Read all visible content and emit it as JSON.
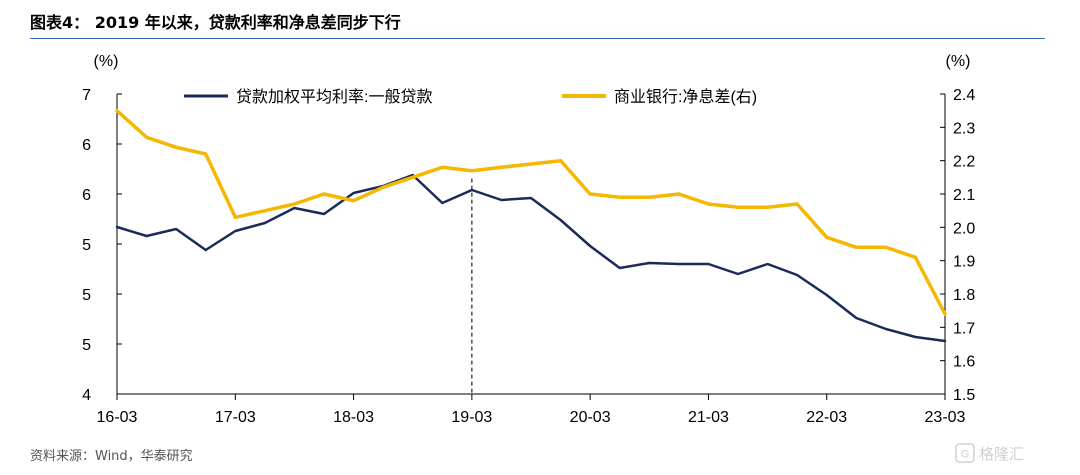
{
  "header": {
    "title": "图表4：  2019 年以来，贷款利率和净息差同步下行"
  },
  "footer": {
    "source": "资料来源：Wind，华泰研究",
    "watermark_text": "格隆汇"
  },
  "colors": {
    "loan_rate": "#1a2a5a",
    "net_interest_margin": "#f5b700",
    "axis": "#000000",
    "marker_line": "#333333"
  },
  "chart_data": {
    "type": "line",
    "left_axis": {
      "unit": "(%)",
      "range": [
        4,
        7
      ],
      "tick_values": [
        4,
        4.5,
        5,
        5.5,
        6,
        6.5,
        7
      ],
      "tick_labels": [
        "4",
        "5",
        "5",
        "5",
        "6",
        "6",
        "7"
      ]
    },
    "right_axis": {
      "unit": "(%)",
      "range": [
        1.5,
        2.4
      ],
      "tick_values": [
        1.5,
        1.6,
        1.7,
        1.8,
        1.9,
        2.0,
        2.1,
        2.2,
        2.3,
        2.4
      ],
      "tick_labels": [
        "1.5",
        "1.6",
        "1.7",
        "1.8",
        "1.9",
        "2.0",
        "2.1",
        "2.2",
        "2.3",
        "2.4"
      ]
    },
    "x_axis": {
      "range": [
        "2016-03",
        "2023-03"
      ],
      "tick_labels": [
        "16-03",
        "17-03",
        "18-03",
        "19-03",
        "20-03",
        "21-03",
        "22-03",
        "23-03"
      ]
    },
    "reference_line": {
      "x": "2019-03"
    },
    "legend": {
      "placement": "top"
    },
    "grid": false,
    "series": [
      {
        "name": "贷款加权平均利率:一般贷款",
        "axis": "left",
        "x": [
          "2016-03",
          "2016-06",
          "2016-09",
          "2016-12",
          "2017-03",
          "2017-06",
          "2017-09",
          "2017-12",
          "2018-03",
          "2018-06",
          "2018-09",
          "2018-12",
          "2019-03",
          "2019-06",
          "2019-09",
          "2019-12",
          "2020-03",
          "2020-06",
          "2020-09",
          "2020-12",
          "2021-03",
          "2021-06",
          "2021-09",
          "2021-12",
          "2022-03",
          "2022-06",
          "2022-09",
          "2022-12",
          "2023-03"
        ],
        "values": [
          5.67,
          5.58,
          5.65,
          5.44,
          5.63,
          5.71,
          5.86,
          5.8,
          6.01,
          6.08,
          6.19,
          5.91,
          6.04,
          5.94,
          5.96,
          5.74,
          5.48,
          5.26,
          5.31,
          5.3,
          5.3,
          5.2,
          5.3,
          5.19,
          4.99,
          4.76,
          4.65,
          4.57,
          4.53
        ]
      },
      {
        "name": "商业银行:净息差(右)",
        "axis": "right",
        "x": [
          "2016-03",
          "2016-06",
          "2016-09",
          "2016-12",
          "2017-03",
          "2017-06",
          "2017-09",
          "2017-12",
          "2018-03",
          "2018-06",
          "2018-09",
          "2018-12",
          "2019-03",
          "2019-06",
          "2019-09",
          "2019-12",
          "2020-03",
          "2020-06",
          "2020-09",
          "2020-12",
          "2021-03",
          "2021-06",
          "2021-09",
          "2021-12",
          "2022-03",
          "2022-06",
          "2022-09",
          "2022-12",
          "2023-03"
        ],
        "values": [
          2.35,
          2.27,
          2.24,
          2.22,
          2.03,
          2.05,
          2.07,
          2.1,
          2.08,
          2.12,
          2.15,
          2.18,
          2.17,
          2.18,
          2.19,
          2.2,
          2.1,
          2.09,
          2.09,
          2.1,
          2.07,
          2.06,
          2.06,
          2.07,
          1.97,
          1.94,
          1.94,
          1.91,
          1.74
        ]
      }
    ]
  }
}
